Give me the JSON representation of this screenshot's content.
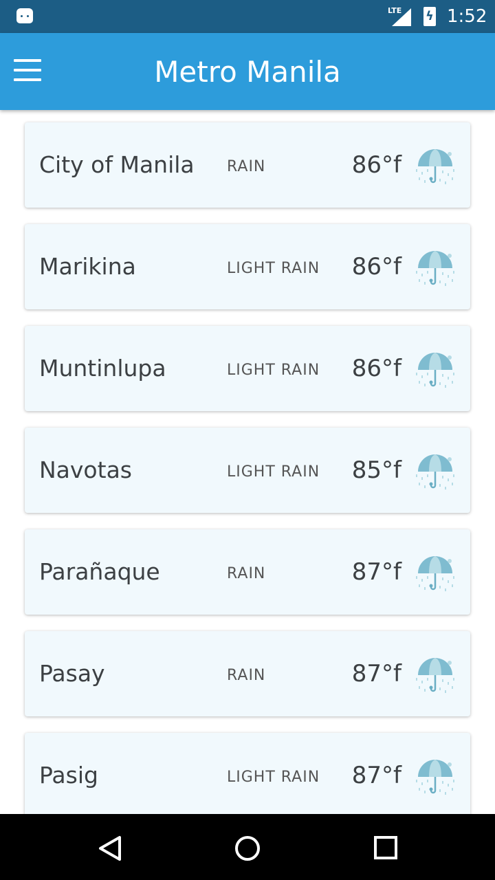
{
  "status": {
    "time": "1:52",
    "network": "LTE"
  },
  "header": {
    "title": "Metro Manila"
  },
  "colors": {
    "status_bar": "#1c5d85",
    "app_bar": "#2d9cdb",
    "card": "#f1f9fd"
  },
  "cities": [
    {
      "name": "City of Manila",
      "condition": "RAIN",
      "temp": "86°f",
      "icon": "umbrella-rain-icon"
    },
    {
      "name": "Marikina",
      "condition": "LIGHT RAIN",
      "temp": "86°f",
      "icon": "umbrella-rain-icon"
    },
    {
      "name": "Muntinlupa",
      "condition": "LIGHT RAIN",
      "temp": "86°f",
      "icon": "umbrella-rain-icon"
    },
    {
      "name": "Navotas",
      "condition": "LIGHT RAIN",
      "temp": "85°f",
      "icon": "umbrella-rain-icon"
    },
    {
      "name": "Parañaque",
      "condition": "RAIN",
      "temp": "87°f",
      "icon": "umbrella-rain-icon"
    },
    {
      "name": "Pasay",
      "condition": "RAIN",
      "temp": "87°f",
      "icon": "umbrella-rain-icon"
    },
    {
      "name": "Pasig",
      "condition": "LIGHT RAIN",
      "temp": "87°f",
      "icon": "umbrella-rain-icon"
    }
  ]
}
